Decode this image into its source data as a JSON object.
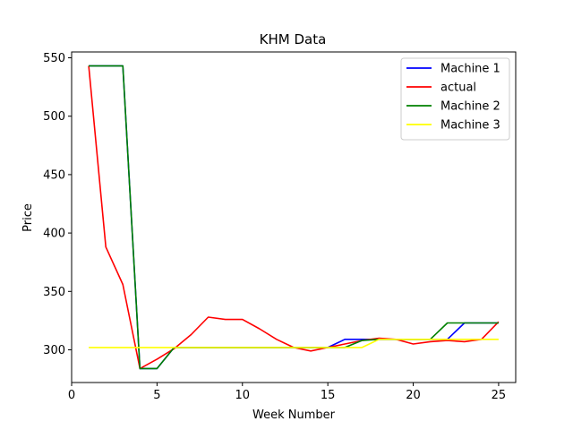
{
  "chart_data": {
    "type": "line",
    "title": "KHM Data",
    "xlabel": "Week Number",
    "ylabel": "Price",
    "xlim": [
      0,
      26
    ],
    "ylim": [
      272,
      555
    ],
    "xticks": [
      0,
      5,
      10,
      15,
      20,
      25
    ],
    "yticks": [
      300,
      350,
      400,
      450,
      500,
      550
    ],
    "x": [
      1,
      2,
      3,
      4,
      5,
      6,
      7,
      8,
      9,
      10,
      11,
      12,
      13,
      14,
      15,
      16,
      17,
      18,
      19,
      20,
      21,
      22,
      23,
      24,
      25
    ],
    "series": [
      {
        "name": "Machine 1",
        "color": "#0000ff",
        "values": [
          543,
          543,
          543,
          284,
          284,
          302,
          302,
          302,
          302,
          302,
          302,
          302,
          302,
          302,
          302,
          309,
          309,
          309,
          309,
          309,
          309,
          309,
          323,
          323,
          323
        ]
      },
      {
        "name": "actual",
        "color": "#ff0000",
        "values": [
          543,
          388,
          356,
          284,
          292,
          301,
          313,
          328,
          326,
          326,
          318,
          309,
          302,
          299,
          302,
          305,
          308,
          310,
          309,
          305,
          307,
          308,
          307,
          309,
          324
        ]
      },
      {
        "name": "Machine 2",
        "color": "#008000",
        "values": [
          543,
          543,
          543,
          284,
          284,
          302,
          302,
          302,
          302,
          302,
          302,
          302,
          302,
          302,
          302,
          302,
          308,
          309,
          309,
          309,
          309,
          323,
          323,
          323,
          323
        ]
      },
      {
        "name": "Machine 3",
        "color": "#ffff00",
        "values": [
          302,
          302,
          302,
          302,
          302,
          302,
          302,
          302,
          302,
          302,
          302,
          302,
          302,
          302,
          302,
          302,
          302,
          309,
          309,
          309,
          309,
          309,
          309,
          309,
          309
        ]
      }
    ],
    "legend_position": "top-right",
    "grid": false
  }
}
